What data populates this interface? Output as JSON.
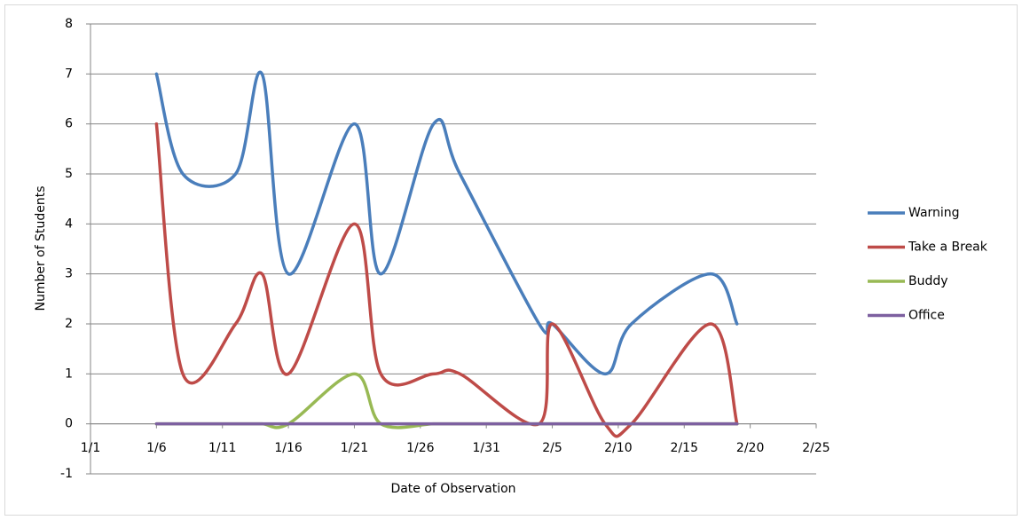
{
  "chart_data": {
    "type": "line",
    "x_label": "Date of Observation",
    "y_label": "Number  of Students",
    "x": [
      "1/6",
      "1/8",
      "1/12",
      "1/14",
      "1/16",
      "1/21",
      "1/23",
      "1/27",
      "1/29",
      "2/4",
      "2/5",
      "2/9",
      "2/11",
      "2/17",
      "2/19"
    ],
    "series": [
      {
        "name": "Warning",
        "color": "#4a7ebb",
        "values": [
          7,
          5,
          5,
          7,
          3,
          6,
          3,
          6,
          5,
          2,
          2,
          1,
          2,
          3,
          2
        ]
      },
      {
        "name": "Take a Break",
        "color": "#be4b48",
        "values": [
          6,
          1,
          2,
          3,
          1,
          4,
          1,
          1,
          1,
          0,
          2,
          0,
          0,
          2,
          0
        ]
      },
      {
        "name": "Buddy",
        "color": "#98b954",
        "values": [
          0,
          0,
          0,
          0,
          0,
          1,
          0,
          0,
          0,
          0,
          0,
          0,
          0,
          0,
          0
        ]
      },
      {
        "name": "Office",
        "color": "#7d60a0",
        "values": [
          0,
          0,
          0,
          0,
          0,
          0,
          0,
          0,
          0,
          0,
          0,
          0,
          0,
          0,
          0
        ]
      }
    ],
    "xlim": [
      "1/1",
      "2/25"
    ],
    "xticks": [
      "1/1",
      "1/6",
      "1/11",
      "1/16",
      "1/21",
      "1/26",
      "1/31",
      "2/5",
      "2/10",
      "2/15",
      "2/20",
      "2/25"
    ],
    "ylim": [
      -1,
      8
    ],
    "yticks": [
      -1,
      0,
      1,
      2,
      3,
      4,
      5,
      6,
      7,
      8
    ],
    "grid": true,
    "smooth": true,
    "legend": "right"
  }
}
